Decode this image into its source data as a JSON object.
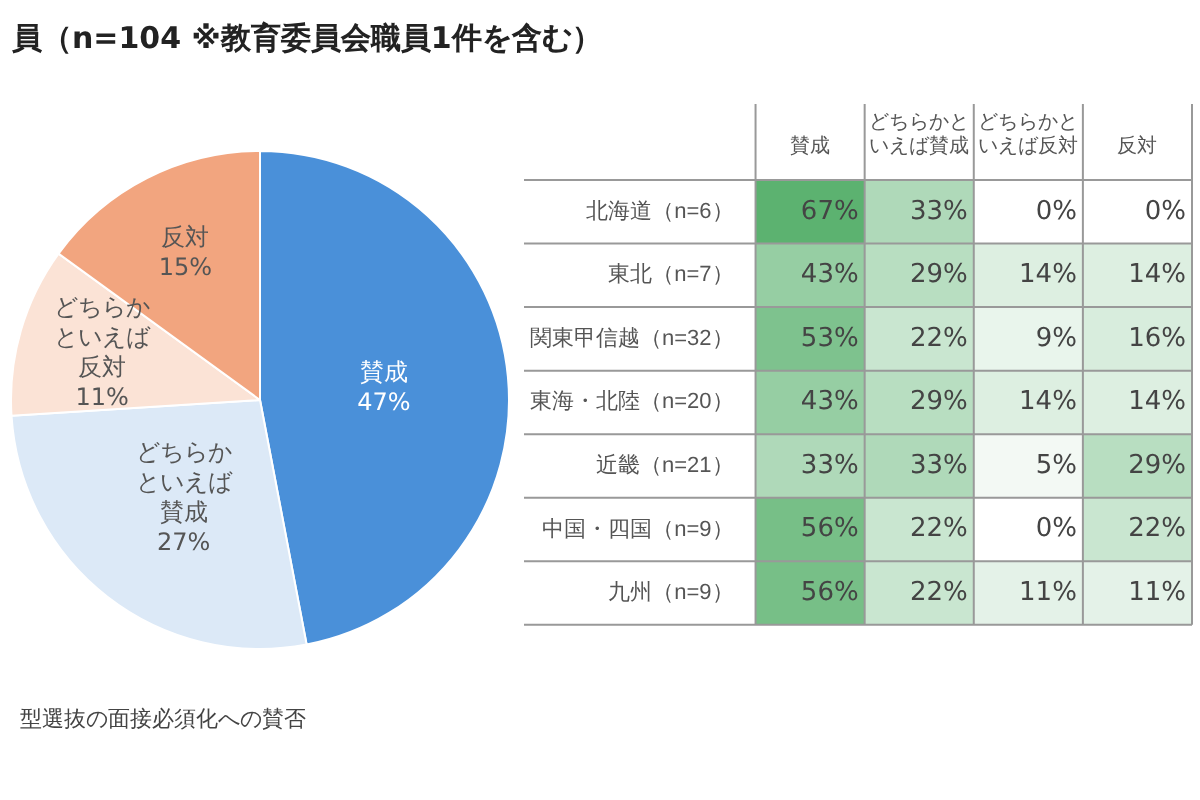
{
  "chart_data": [
    {
      "type": "pie",
      "title": "員（n=104 ※教育委員会職員1件を含む）",
      "categories": [
        "賛成",
        "どちらかといえば賛成",
        "どちらかといえば反対",
        "反対"
      ],
      "values": [
        47,
        27,
        11,
        15
      ],
      "colors": [
        "#4a90d9",
        "#dce9f7",
        "#fbe3d6",
        "#f2a57f"
      ],
      "value_labels": [
        "47%",
        "27%",
        "11%",
        "15%"
      ],
      "legend": false,
      "annotations": [
        "型選抜の面接必須化への賛否"
      ]
    },
    {
      "type": "heatmap",
      "categories": [
        "賛成",
        "どちらかといえば賛成",
        "どちらかといえば反対",
        "反対"
      ],
      "y_categories": [
        "北海道（n=6）",
        "東北（n=7）",
        "関東甲信越（n=32）",
        "東海・北陸（n=20）",
        "近畿（n=21）",
        "中国・四国（n=9）",
        "九州（n=9）"
      ],
      "cells": [
        [
          67,
          33,
          0,
          0
        ],
        [
          43,
          29,
          14,
          14
        ],
        [
          53,
          22,
          9,
          16
        ],
        [
          43,
          29,
          14,
          14
        ],
        [
          33,
          33,
          5,
          29
        ],
        [
          56,
          22,
          0,
          22
        ],
        [
          56,
          22,
          11,
          11
        ]
      ],
      "cell_labels": [
        [
          "67%",
          "33%",
          "0%",
          "0%"
        ],
        [
          "43%",
          "29%",
          "14%",
          "14%"
        ],
        [
          "53%",
          "22%",
          "9%",
          "16%"
        ],
        [
          "43%",
          "29%",
          "14%",
          "14%"
        ],
        [
          "33%",
          "33%",
          "5%",
          "29%"
        ],
        [
          "56%",
          "22%",
          "0%",
          "22%"
        ],
        [
          "56%",
          "22%",
          "11%",
          "11%"
        ]
      ]
    }
  ]
}
